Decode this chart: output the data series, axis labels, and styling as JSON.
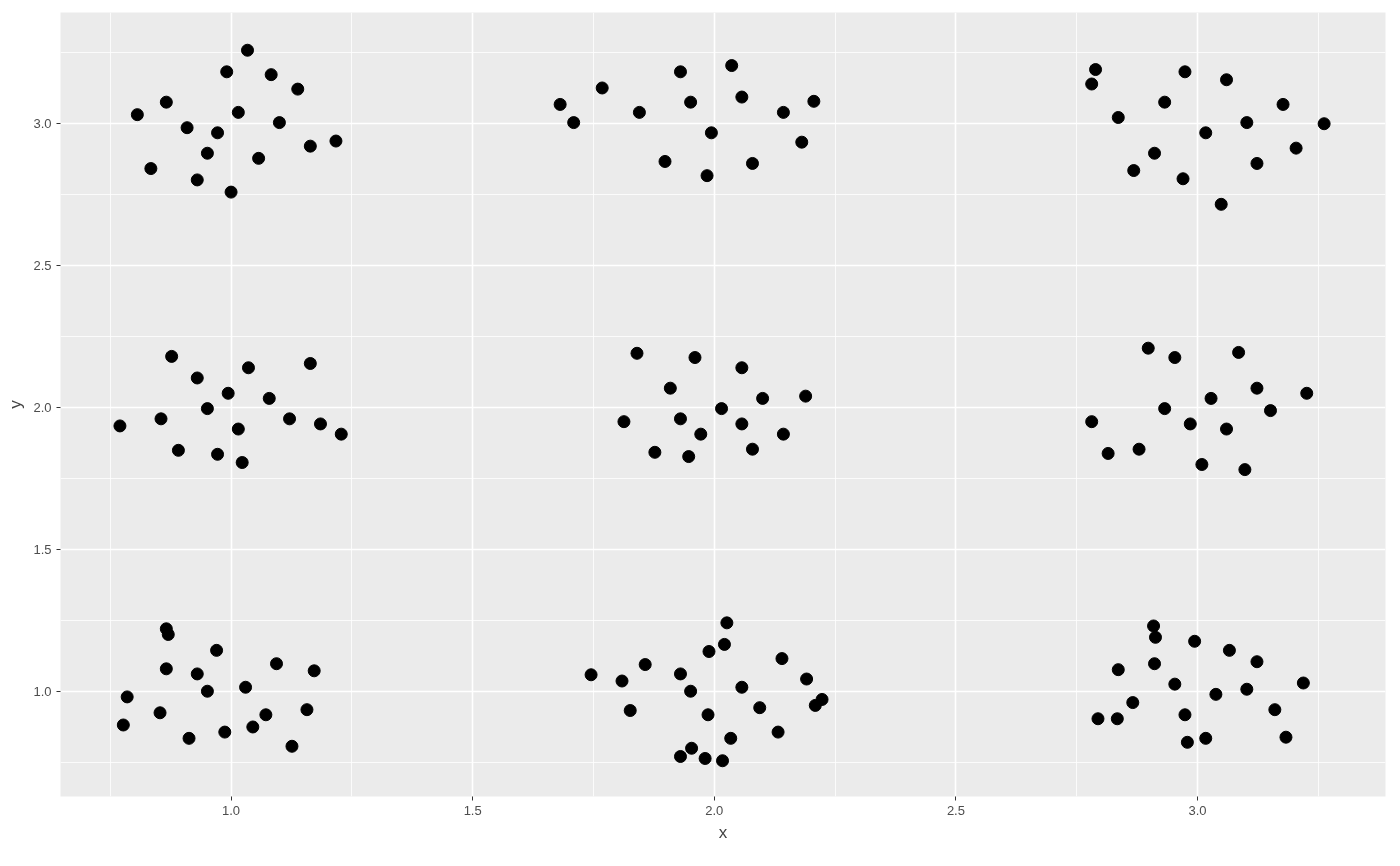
{
  "chart_data": {
    "type": "scatter",
    "xlabel": "x",
    "ylabel": "y",
    "xlim": [
      0.647,
      3.389
    ],
    "ylim": [
      0.629,
      3.392
    ],
    "xticks": [
      {
        "value": 1,
        "label": "1.0"
      },
      {
        "value": 1.5,
        "label": "1.5"
      },
      {
        "value": 2,
        "label": "2.0"
      },
      {
        "value": 2.5,
        "label": "2.5"
      },
      {
        "value": 3,
        "label": "3.0"
      }
    ],
    "yticks": [
      {
        "value": 1,
        "label": "1.0"
      },
      {
        "value": 1.5,
        "label": "1.5"
      },
      {
        "value": 2,
        "label": "2.0"
      },
      {
        "value": 2.5,
        "label": "2.5"
      },
      {
        "value": 3,
        "label": "3.0"
      }
    ],
    "grid": true,
    "marker": "circle",
    "series": [
      {
        "color": "#000000",
        "x": [
          1.034,
          1.0,
          1.217,
          0.806,
          0.834,
          0.93,
          1.083,
          1.138,
          0.991,
          0.866,
          0.951,
          1.057,
          1.164,
          0.909,
          1.015,
          1.1,
          0.972,
          1.681,
          1.709,
          1.768,
          2.206,
          2.181,
          1.985,
          2.036,
          1.93,
          1.898,
          2.079,
          1.845,
          2.143,
          1.994,
          1.951,
          2.057,
          2.789,
          2.781,
          3.262,
          3.049,
          2.974,
          3.204,
          2.97,
          2.868,
          3.06,
          3.177,
          2.836,
          3.123,
          2.932,
          3.017,
          3.102,
          2.911,
          0.77,
          1.228,
          0.877,
          1.164,
          1.023,
          0.891,
          0.972,
          1.036,
          0.93,
          1.079,
          0.951,
          1.121,
          0.855,
          1.015,
          1.185,
          0.994,
          1.84,
          1.813,
          2.189,
          1.947,
          1.877,
          2.079,
          1.96,
          2.057,
          2.143,
          1.909,
          2.015,
          1.972,
          2.1,
          1.93,
          2.057,
          2.781,
          3.226,
          2.815,
          3.009,
          3.098,
          2.898,
          3.085,
          3.151,
          2.953,
          2.879,
          3.028,
          2.932,
          3.123,
          3.06,
          2.985,
          0.866,
          0.87,
          0.777,
          0.785,
          1.172,
          1.126,
          0.913,
          0.853,
          0.97,
          1.094,
          1.157,
          1.045,
          0.987,
          0.866,
          0.951,
          1.03,
          1.072,
          0.93,
          1.745,
          1.809,
          1.857,
          2.026,
          2.021,
          2.223,
          2.209,
          2.191,
          2.14,
          1.93,
          1.981,
          2.017,
          1.953,
          1.826,
          2.132,
          2.034,
          1.989,
          1.951,
          2.057,
          1.987,
          1.93,
          2.094,
          2.909,
          2.913,
          2.794,
          2.834,
          2.979,
          3.017,
          3.183,
          3.219,
          3.16,
          3.066,
          2.994,
          2.836,
          2.866,
          3.123,
          2.953,
          3.038,
          2.974,
          3.102,
          2.911
        ],
        "values": [
          3.259,
          2.759,
          2.939,
          3.032,
          2.842,
          2.802,
          3.173,
          3.122,
          3.183,
          3.076,
          2.896,
          2.878,
          2.921,
          2.986,
          3.04,
          3.004,
          2.968,
          3.068,
          3.004,
          3.126,
          3.079,
          2.935,
          2.817,
          3.205,
          3.183,
          2.867,
          2.86,
          3.04,
          3.04,
          2.968,
          3.076,
          3.094,
          3.191,
          3.14,
          3.0,
          2.716,
          3.183,
          2.914,
          2.806,
          2.835,
          3.155,
          3.068,
          3.022,
          2.86,
          3.076,
          2.968,
          3.004,
          2.896,
          1.935,
          1.906,
          2.18,
          2.155,
          1.806,
          1.849,
          1.835,
          2.14,
          2.104,
          2.032,
          1.996,
          1.96,
          1.96,
          1.924,
          1.942,
          2.05,
          2.191,
          1.95,
          2.04,
          1.827,
          1.842,
          1.853,
          2.176,
          2.14,
          1.906,
          2.068,
          1.996,
          1.906,
          2.032,
          1.96,
          1.942,
          1.95,
          2.05,
          1.838,
          1.799,
          1.781,
          2.209,
          2.194,
          1.989,
          2.176,
          1.853,
          2.032,
          1.996,
          2.068,
          1.924,
          1.942,
          1.22,
          1.2,
          0.881,
          0.98,
          1.072,
          0.806,
          0.834,
          0.924,
          1.144,
          1.097,
          0.935,
          0.874,
          0.856,
          1.079,
          1.0,
          1.014,
          0.917,
          1.061,
          1.058,
          1.036,
          1.094,
          1.241,
          1.165,
          0.971,
          0.95,
          1.043,
          1.115,
          0.77,
          0.763,
          0.755,
          0.799,
          0.932,
          0.856,
          0.834,
          1.14,
          1.0,
          1.014,
          0.917,
          1.061,
          0.942,
          1.23,
          1.19,
          0.903,
          0.903,
          0.82,
          0.834,
          0.838,
          1.029,
          0.935,
          1.144,
          1.176,
          1.076,
          0.96,
          1.104,
          1.025,
          0.989,
          0.917,
          1.007,
          1.097
        ]
      }
    ]
  }
}
